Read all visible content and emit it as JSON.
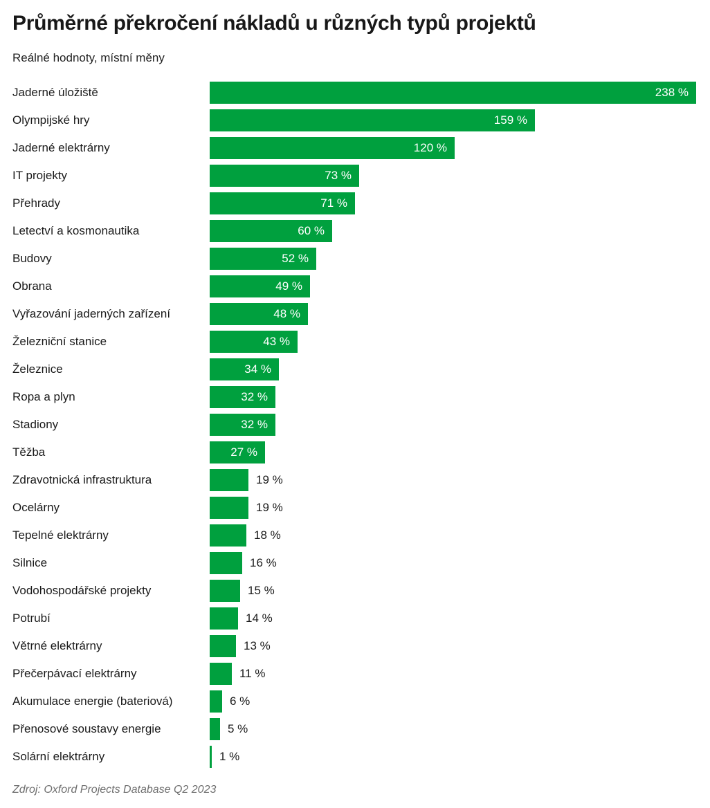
{
  "header": {
    "title": "Průměrné překročení nákladů u různých typů projektů",
    "subtitle": "Reálné hodnoty, místní měny"
  },
  "footer": {
    "source": "Zdroj: Oxford Projects Database Q2 2023"
  },
  "colors": {
    "bar": "#00a03e",
    "value_inside": "#ffffff",
    "value_outside": "#1a1a1a"
  },
  "chart_data": {
    "type": "bar",
    "orientation": "horizontal",
    "title": "Průměrné překročení nákladů u různých typů projektů",
    "subtitle": "Reálné hodnoty, místní měny",
    "source": "Zdroj: Oxford Projects Database Q2 2023",
    "unit": "%",
    "value_suffix": " %",
    "xlabel": "",
    "ylabel": "",
    "xlim": [
      0,
      238
    ],
    "grid": false,
    "legend": false,
    "categories": [
      "Jaderné úložiště",
      "Olympijské hry",
      "Jaderné elektrárny",
      "IT projekty",
      "Přehrady",
      "Letectví a kosmonautika",
      "Budovy",
      "Obrana",
      "Vyřazování jaderných zařízení",
      "Železniční stanice",
      "Železnice",
      "Ropa a plyn",
      "Stadiony",
      "Těžba",
      "Zdravotnická infrastruktura",
      "Ocelárny",
      "Tepelné elektrárny",
      "Silnice",
      "Vodohospodářské projekty",
      "Potrubí",
      "Větrné elektrárny",
      "Přečerpávací elektrárny",
      "Akumulace energie (bateriová)",
      "Přenosové soustavy energie",
      "Solární elektrárny"
    ],
    "values": [
      238,
      159,
      120,
      73,
      71,
      60,
      52,
      49,
      48,
      43,
      34,
      32,
      32,
      27,
      19,
      19,
      18,
      16,
      15,
      14,
      13,
      11,
      6,
      5,
      1
    ]
  }
}
